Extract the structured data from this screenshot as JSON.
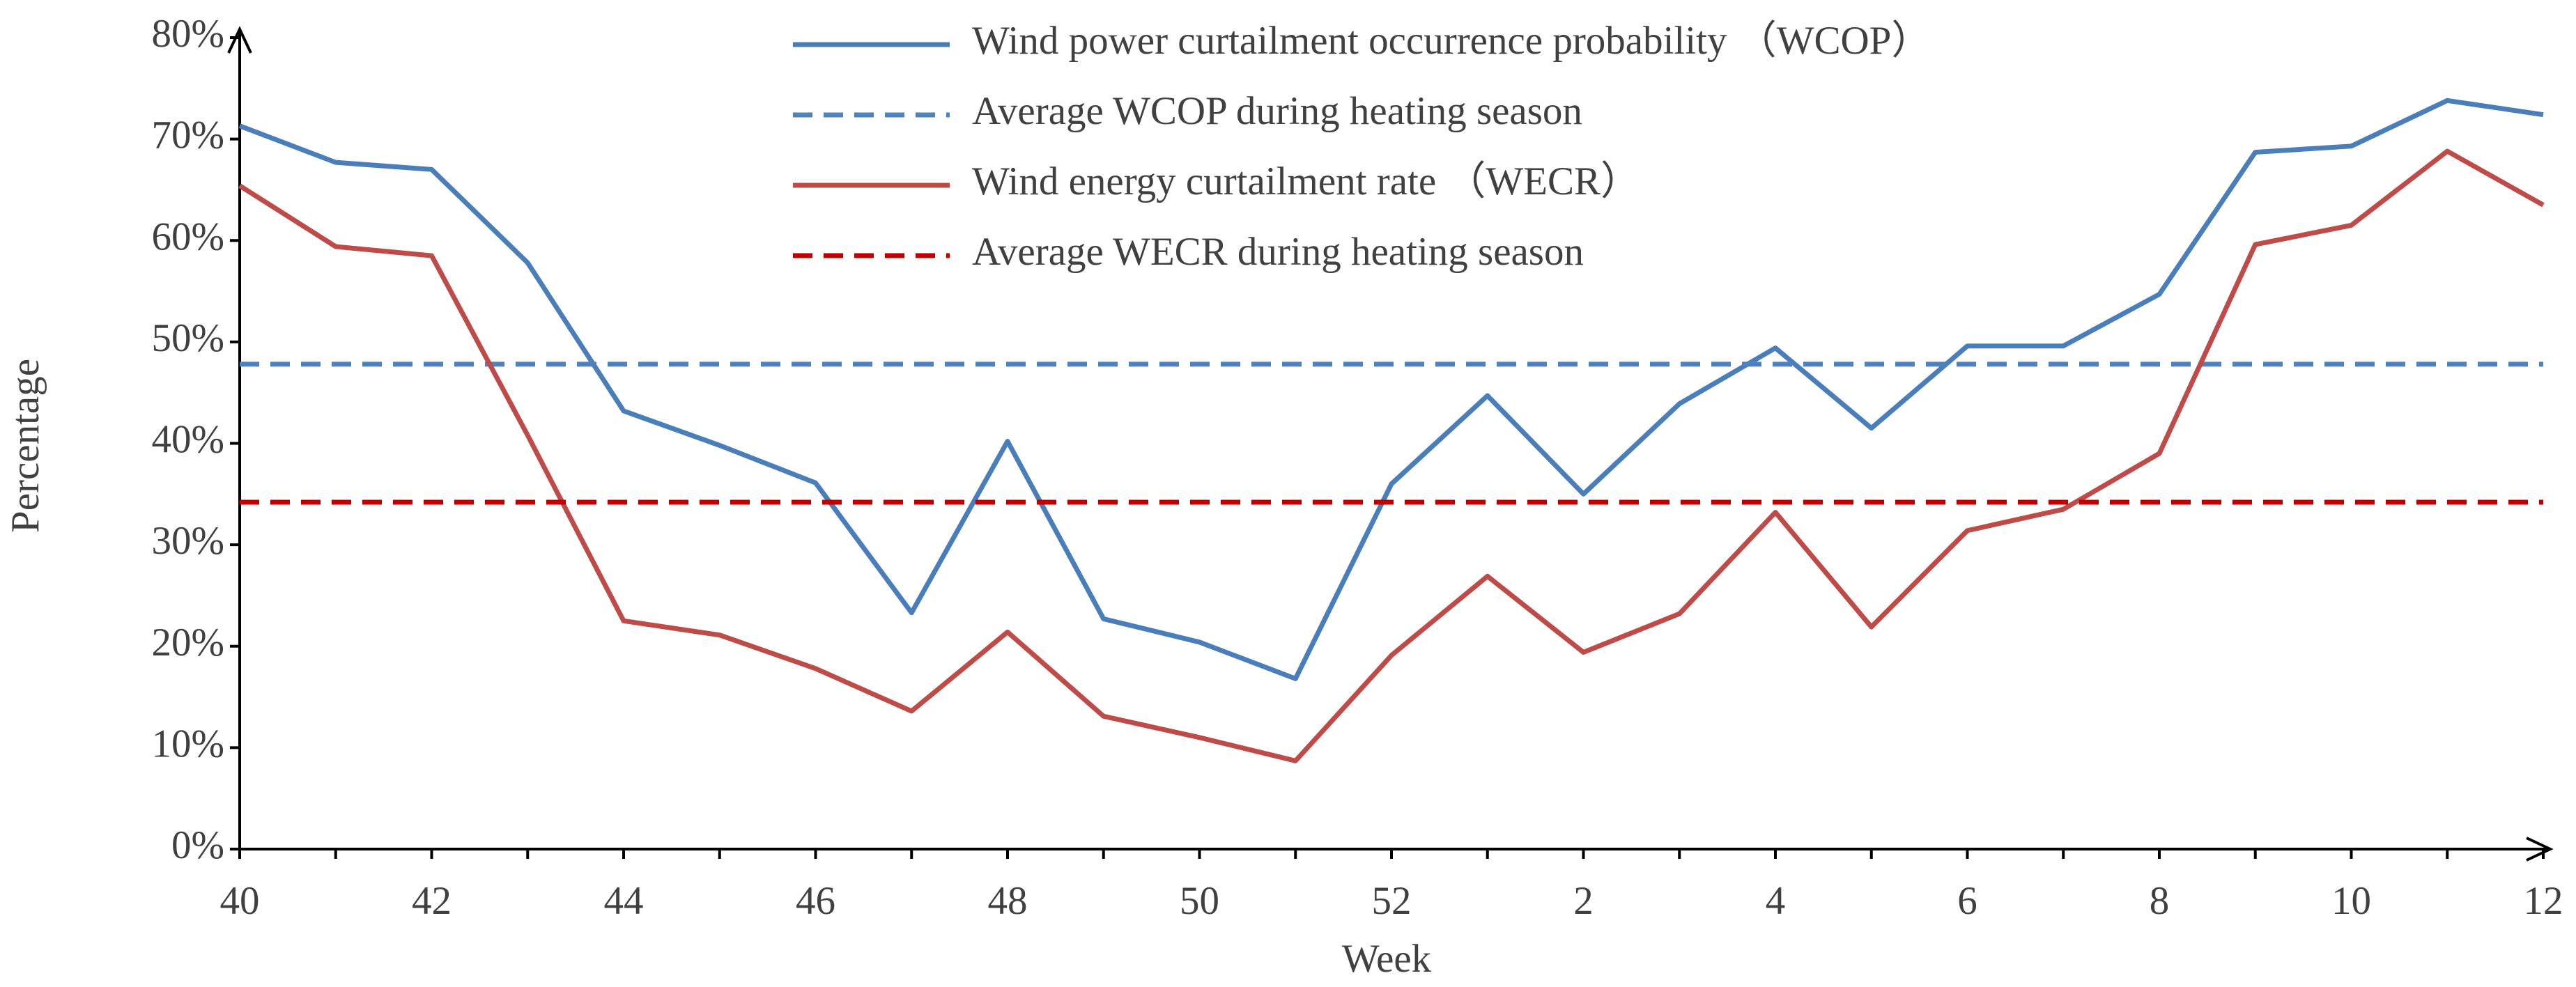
{
  "chart_data": {
    "type": "line",
    "x_label": "Week",
    "y_label": "Percentage",
    "categories": [
      40,
      null,
      42,
      null,
      44,
      null,
      46,
      null,
      48,
      null,
      50,
      null,
      52,
      null,
      2,
      null,
      4,
      null,
      6,
      null,
      8,
      null,
      10,
      null,
      12
    ],
    "series": [
      {
        "name": "Wind power curtailment occurrence probability （WCOP）",
        "color": "#4a7ebb",
        "style": "solid",
        "values": [
          71.3,
          67.7,
          67.0,
          57.8,
          43.2,
          39.8,
          36.1,
          23.3,
          40.2,
          22.7,
          20.4,
          16.8,
          36.0,
          44.7,
          35.0,
          43.9,
          49.4,
          41.5,
          49.6,
          49.6,
          54.7,
          68.7,
          69.3,
          73.8,
          72.4
        ]
      },
      {
        "name": "Average WCOP during heating season",
        "color": "#4f81bd",
        "style": "dashed",
        "value": 47.8
      },
      {
        "name": "Wind energy curtailment rate （WECR）",
        "color": "#be4b48",
        "style": "solid",
        "values": [
          65.4,
          59.4,
          58.5,
          40.8,
          22.5,
          21.1,
          17.8,
          13.6,
          21.4,
          13.1,
          11.0,
          8.7,
          19.1,
          26.9,
          19.4,
          23.2,
          33.2,
          21.9,
          31.4,
          33.5,
          39.0,
          59.6,
          61.5,
          68.8,
          63.5
        ]
      },
      {
        "name": "Average WECR during heating season",
        "color": "#c00000",
        "style": "dashed",
        "value": 34.2
      }
    ],
    "ylim": [
      0,
      80
    ],
    "yticks": [
      {
        "value": 0,
        "label": "0%"
      },
      {
        "value": 10,
        "label": "10%"
      },
      {
        "value": 20,
        "label": "20%"
      },
      {
        "value": 30,
        "label": "30%"
      },
      {
        "value": 40,
        "label": "40%"
      },
      {
        "value": 50,
        "label": "50%"
      },
      {
        "value": 60,
        "label": "60%"
      },
      {
        "value": 70,
        "label": "70%"
      },
      {
        "value": 80,
        "label": "80%"
      }
    ],
    "grid": false,
    "legend": "top"
  }
}
